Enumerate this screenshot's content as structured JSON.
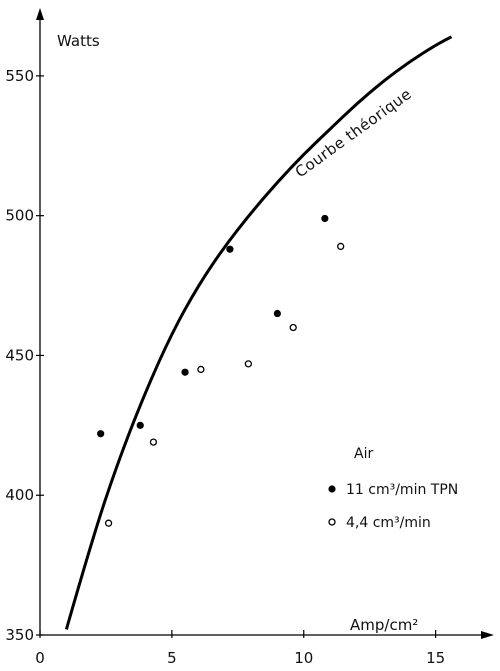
{
  "chart_data": {
    "type": "scatter",
    "title": "",
    "xlabel": "Amp/cm²",
    "ylabel": "Watts",
    "xlim": [
      0,
      16
    ],
    "ylim": [
      350,
      570
    ],
    "x_ticks": [
      {
        "value": 0,
        "label": "0"
      },
      {
        "value": 5,
        "label": "5"
      },
      {
        "value": 10,
        "label": "10"
      },
      {
        "value": 15,
        "label": "15"
      }
    ],
    "y_ticks": [
      {
        "value": 350,
        "label": "350"
      },
      {
        "value": 400,
        "label": "400"
      },
      {
        "value": 450,
        "label": "450"
      },
      {
        "value": 500,
        "label": "500"
      },
      {
        "value": 550,
        "label": "550"
      }
    ],
    "grid": false,
    "legend_title": "Air",
    "series": [
      {
        "name": "11 cm³/min TPN",
        "marker": "filled-circle",
        "points": [
          {
            "x": 2.3,
            "y": 422
          },
          {
            "x": 3.8,
            "y": 425
          },
          {
            "x": 5.5,
            "y": 444
          },
          {
            "x": 7.2,
            "y": 488
          },
          {
            "x": 9.0,
            "y": 465
          },
          {
            "x": 10.8,
            "y": 499
          }
        ]
      },
      {
        "name": "4,4 cm³/min",
        "marker": "open-circle",
        "points": [
          {
            "x": 2.6,
            "y": 390
          },
          {
            "x": 4.3,
            "y": 419
          },
          {
            "x": 6.1,
            "y": 445
          },
          {
            "x": 7.9,
            "y": 447
          },
          {
            "x": 9.6,
            "y": 460
          },
          {
            "x": 11.4,
            "y": 489
          }
        ]
      }
    ],
    "curve": {
      "label": "Courbe théorique",
      "points": [
        {
          "x": 1.0,
          "y": 352
        },
        {
          "x": 2.0,
          "y": 385
        },
        {
          "x": 3.0,
          "y": 413
        },
        {
          "x": 4.0,
          "y": 437
        },
        {
          "x": 5.0,
          "y": 458
        },
        {
          "x": 6.0,
          "y": 475
        },
        {
          "x": 7.0,
          "y": 489
        },
        {
          "x": 8.0,
          "y": 501
        },
        {
          "x": 9.0,
          "y": 512
        },
        {
          "x": 10.0,
          "y": 522
        },
        {
          "x": 11.0,
          "y": 531
        },
        {
          "x": 12.0,
          "y": 540
        },
        {
          "x": 13.0,
          "y": 548
        },
        {
          "x": 14.0,
          "y": 555
        },
        {
          "x": 15.0,
          "y": 561
        },
        {
          "x": 15.6,
          "y": 564
        }
      ]
    }
  }
}
